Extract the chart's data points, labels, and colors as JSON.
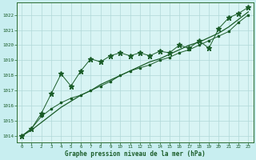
{
  "title": "Graphe pression niveau de la mer (hPa)",
  "fig_bg_color": "#c8eef0",
  "plot_bg_color": "#d8f4f4",
  "grid_color": "#b0d8d8",
  "line_color": "#1a5c28",
  "spine_color": "#2a6b30",
  "xlim": [
    -0.5,
    23.5
  ],
  "ylim": [
    1013.6,
    1022.8
  ],
  "xticks": [
    0,
    1,
    2,
    3,
    4,
    5,
    6,
    7,
    8,
    9,
    10,
    11,
    12,
    13,
    14,
    15,
    16,
    17,
    18,
    19,
    20,
    21,
    22,
    23
  ],
  "yticks": [
    1014,
    1015,
    1016,
    1017,
    1018,
    1019,
    1020,
    1021,
    1022
  ],
  "star_x": [
    0,
    1,
    2,
    3,
    4,
    5,
    6,
    7,
    8,
    9,
    10,
    11,
    12,
    13,
    14,
    15,
    16,
    17,
    18,
    19,
    20,
    21,
    22,
    23
  ],
  "star_y": [
    1014.0,
    1014.5,
    1015.5,
    1016.8,
    1018.1,
    1017.3,
    1018.3,
    1019.1,
    1018.9,
    1019.3,
    1019.5,
    1019.3,
    1019.5,
    1019.3,
    1019.6,
    1019.5,
    1020.0,
    1019.8,
    1020.3,
    1019.8,
    1021.1,
    1021.8,
    1022.1,
    1022.5
  ],
  "dot_x": [
    0,
    1,
    2,
    3,
    4,
    5,
    6,
    7,
    8,
    9,
    10,
    11,
    12,
    13,
    14,
    15,
    16,
    17,
    18,
    19,
    20,
    21,
    22,
    23
  ],
  "dot_y": [
    1014.0,
    1014.5,
    1015.3,
    1015.8,
    1016.2,
    1016.5,
    1016.7,
    1017.0,
    1017.3,
    1017.6,
    1018.0,
    1018.3,
    1018.5,
    1018.7,
    1019.0,
    1019.2,
    1019.5,
    1019.7,
    1020.0,
    1020.3,
    1020.6,
    1020.9,
    1021.5,
    1022.0
  ],
  "trend_x": [
    0,
    1,
    2,
    3,
    4,
    5,
    6,
    7,
    8,
    9,
    10,
    11,
    12,
    13,
    14,
    15,
    16,
    17,
    18,
    19,
    20,
    21,
    22,
    23
  ],
  "trend_y": [
    1014.0,
    1014.4,
    1014.9,
    1015.4,
    1015.9,
    1016.3,
    1016.7,
    1017.0,
    1017.4,
    1017.7,
    1018.0,
    1018.3,
    1018.6,
    1018.9,
    1019.1,
    1019.4,
    1019.7,
    1020.0,
    1020.2,
    1020.5,
    1020.8,
    1021.2,
    1021.7,
    1022.2
  ]
}
